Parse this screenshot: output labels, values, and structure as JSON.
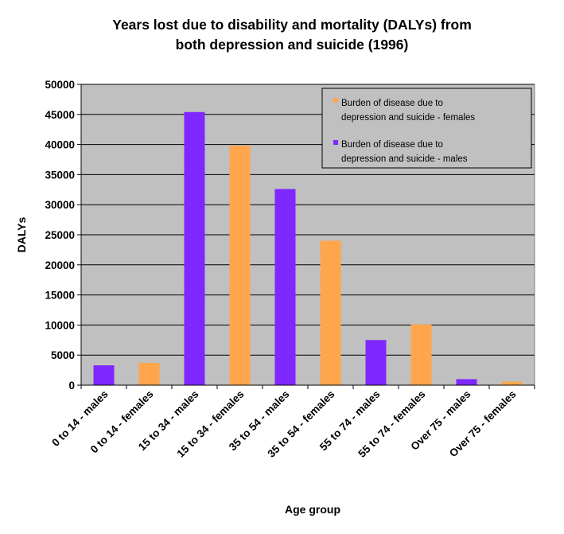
{
  "chart_data": {
    "type": "bar",
    "title": [
      "Years lost due to disability and mortality (DALYs) from",
      "both depression and suicide  (1996)"
    ],
    "xlabel": "Age group",
    "ylabel": "DALYs",
    "ylim": [
      0,
      50000
    ],
    "yticks": [
      "0",
      "5000",
      "10000",
      "15000",
      "20000",
      "25000",
      "30000",
      "35000",
      "40000",
      "45000",
      "50000"
    ],
    "grid": true,
    "legend_position": "top-right",
    "series": [
      {
        "name": "Burden of disease due to depression and suicide - females",
        "legend_lines": [
          "Burden of disease due to",
          "depression and suicide - females"
        ],
        "color": "#ffa64d"
      },
      {
        "name": "Burden of disease due to depression and suicide - males",
        "legend_lines": [
          "Burden of disease due to",
          "depression and suicide - males"
        ],
        "color": "#7f27ff"
      }
    ],
    "bars": [
      {
        "category": "0 to 14 - males",
        "value": 3300,
        "series": 1
      },
      {
        "category": "0 to 14 - females",
        "value": 3700,
        "series": 0
      },
      {
        "category": "15 to 34 - males",
        "value": 45400,
        "series": 1
      },
      {
        "category": "15 to 34 - females",
        "value": 39800,
        "series": 0
      },
      {
        "category": "35 to 54 - males",
        "value": 32600,
        "series": 1
      },
      {
        "category": "35 to 54 - females",
        "value": 24000,
        "series": 0
      },
      {
        "category": "55 to 74 - males",
        "value": 7500,
        "series": 1
      },
      {
        "category": "55 to 74 - females",
        "value": 10100,
        "series": 0
      },
      {
        "category": "Over 75 - males",
        "value": 1000,
        "series": 1
      },
      {
        "category": "Over 75 - females",
        "value": 600,
        "series": 0
      }
    ],
    "plot_background": "#c0c0c0"
  }
}
